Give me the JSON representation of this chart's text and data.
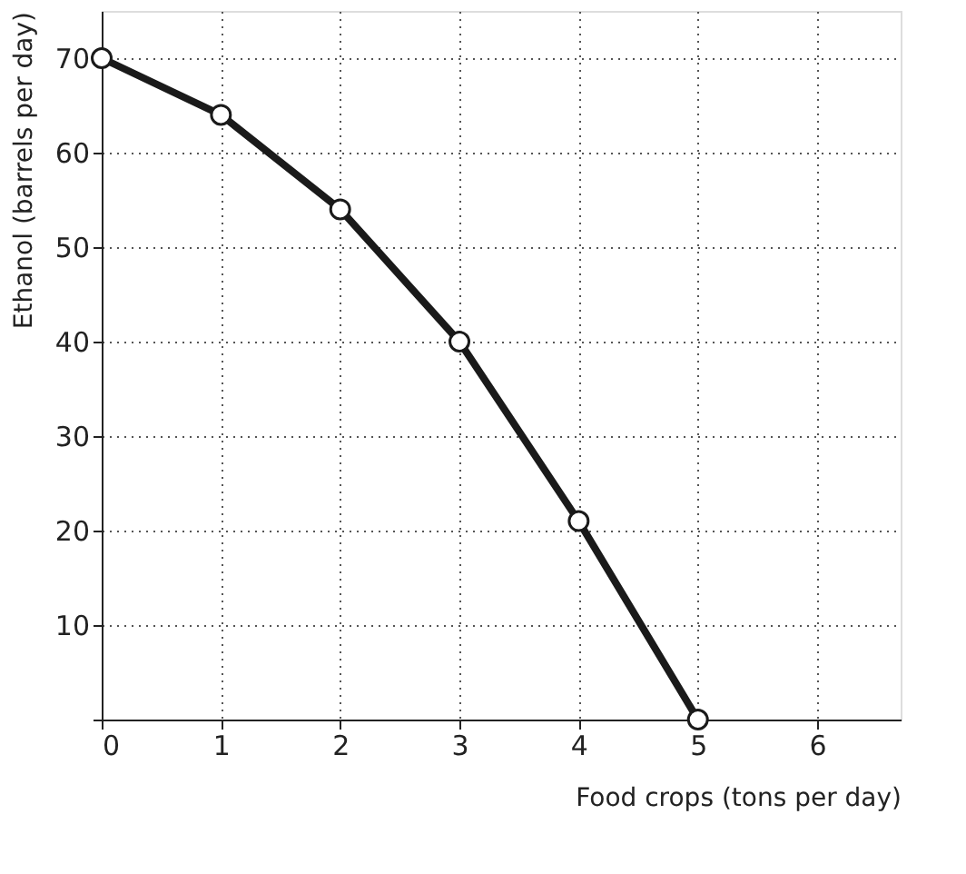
{
  "chart_data": {
    "type": "line",
    "x": [
      0,
      1,
      2,
      3,
      4,
      5
    ],
    "series": [
      {
        "color": "#1a1a1a",
        "values": [
          70,
          64,
          54,
          40,
          21,
          0
        ]
      }
    ],
    "xlabel": "Food crops (tons per day)",
    "ylabel": "Ethanol (barrels per day)",
    "xlim": [
      0,
      6.7
    ],
    "ylim": [
      0,
      75
    ],
    "xticks": [
      0,
      1,
      2,
      3,
      4,
      5,
      6
    ],
    "yticks": [
      {
        "value": 0,
        "label": null
      },
      10,
      20,
      30,
      40,
      50,
      60,
      70
    ],
    "grid": true,
    "marker": "circle",
    "line_style": "solid"
  }
}
